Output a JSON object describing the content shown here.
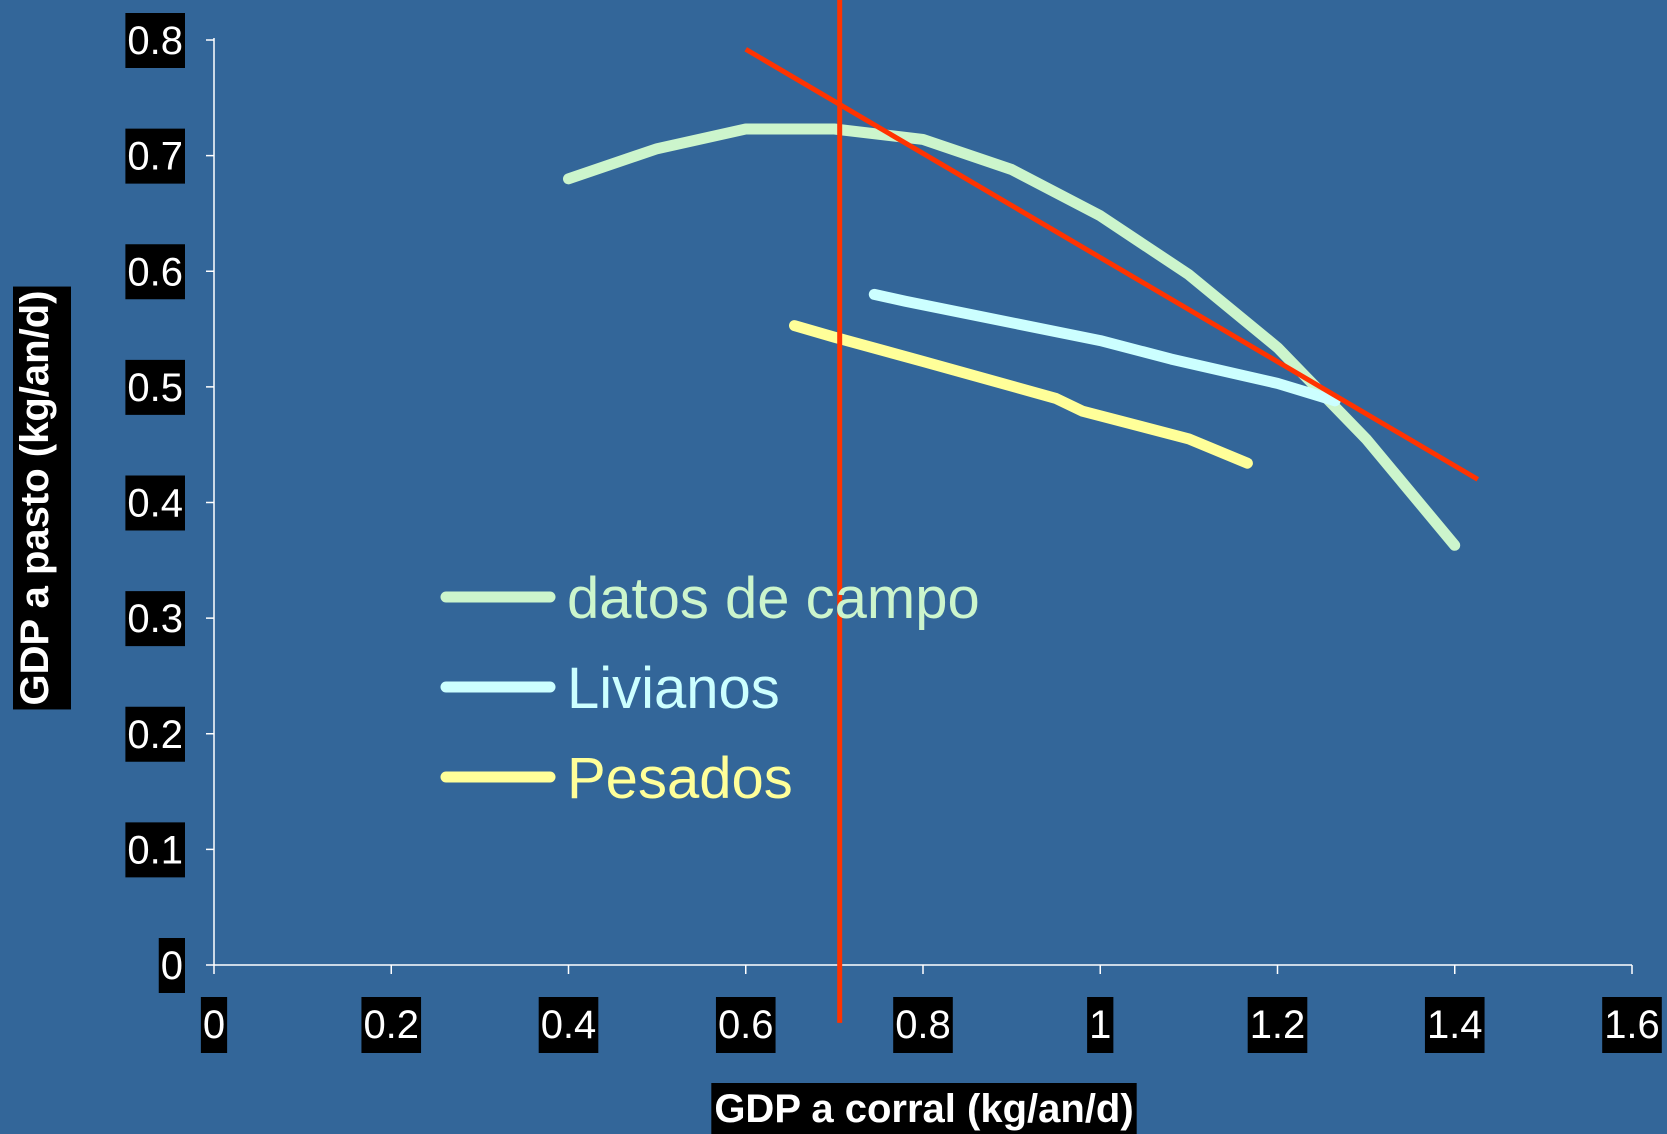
{
  "chart_data": {
    "type": "line",
    "xlabel": "GDP a corral (kg/an/d)",
    "ylabel": "GDP a pasto (kg/an/d)",
    "xlim": [
      0,
      1.6
    ],
    "ylim": [
      0,
      0.8
    ],
    "x_ticks": [
      "0",
      "0.2",
      "0.4",
      "0.6",
      "0.8",
      "1",
      "1.2",
      "1.4",
      "1.6"
    ],
    "y_ticks": [
      "0",
      "0.1",
      "0.2",
      "0.3",
      "0.4",
      "0.5",
      "0.6",
      "0.7",
      "0.8"
    ],
    "grid": false,
    "legend_position": "center-left",
    "series": [
      {
        "name": "datos de campo",
        "color": "#ccf5cc",
        "points": [
          [
            0.4,
            0.68
          ],
          [
            0.5,
            0.706
          ],
          [
            0.6,
            0.723
          ],
          [
            0.7,
            0.723
          ],
          [
            0.8,
            0.714
          ],
          [
            0.9,
            0.688
          ],
          [
            1.0,
            0.648
          ],
          [
            1.1,
            0.597
          ],
          [
            1.2,
            0.534
          ],
          [
            1.3,
            0.455
          ],
          [
            1.4,
            0.363
          ]
        ]
      },
      {
        "name": "Livianos",
        "color": "#ccffff",
        "points": [
          [
            0.745,
            0.58
          ],
          [
            0.78,
            0.574
          ],
          [
            1.0,
            0.54
          ],
          [
            1.08,
            0.524
          ],
          [
            1.2,
            0.503
          ],
          [
            1.265,
            0.488
          ]
        ]
      },
      {
        "name": "Pesados",
        "color": "#ffff99",
        "points": [
          [
            0.655,
            0.553
          ],
          [
            0.7,
            0.543
          ],
          [
            0.8,
            0.522
          ],
          [
            0.95,
            0.49
          ],
          [
            0.98,
            0.479
          ],
          [
            1.1,
            0.455
          ],
          [
            1.166,
            0.434
          ]
        ]
      }
    ],
    "reference_lines": [
      {
        "color": "#ff3300",
        "points": [
          [
            0.706,
            0.835
          ],
          [
            0.706,
            -0.05
          ]
        ]
      },
      {
        "color": "#ff3300",
        "points": [
          [
            0.6,
            0.792
          ],
          [
            1.426,
            0.42
          ]
        ]
      }
    ]
  }
}
